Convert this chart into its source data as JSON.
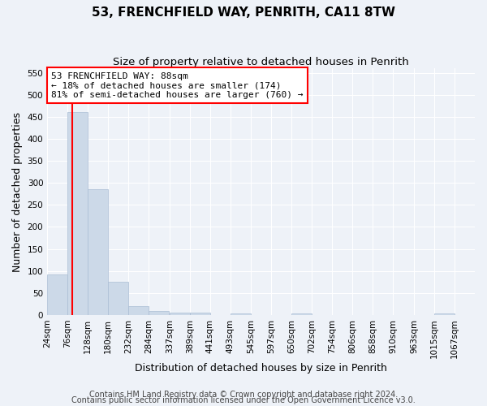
{
  "title": "53, FRENCHFIELD WAY, PENRITH, CA11 8TW",
  "subtitle": "Size of property relative to detached houses in Penrith",
  "xlabel": "Distribution of detached houses by size in Penrith",
  "ylabel": "Number of detached properties",
  "footnote1": "Contains HM Land Registry data © Crown copyright and database right 2024.",
  "footnote2": "Contains public sector information licensed under the Open Government Licence v3.0.",
  "bar_color": "#ccd9e8",
  "bar_edge_color": "#aabdd4",
  "property_line_color": "red",
  "property_sqm": 88,
  "annotation_line1": "53 FRENCHFIELD WAY: 88sqm",
  "annotation_line2": "← 18% of detached houses are smaller (174)",
  "annotation_line3": "81% of semi-detached houses are larger (760) →",
  "annotation_box_color": "white",
  "annotation_box_edge_color": "red",
  "categories": [
    "24sqm",
    "76sqm",
    "128sqm",
    "180sqm",
    "232sqm",
    "284sqm",
    "337sqm",
    "389sqm",
    "441sqm",
    "493sqm",
    "545sqm",
    "597sqm",
    "650sqm",
    "702sqm",
    "754sqm",
    "806sqm",
    "858sqm",
    "910sqm",
    "963sqm",
    "1015sqm",
    "1067sqm"
  ],
  "bin_edges": [
    24,
    76,
    128,
    180,
    232,
    284,
    337,
    389,
    441,
    493,
    545,
    597,
    650,
    702,
    754,
    806,
    858,
    910,
    963,
    1015,
    1067
  ],
  "bin_width": 52,
  "values": [
    93,
    460,
    286,
    76,
    21,
    9,
    6,
    5,
    0,
    4,
    0,
    0,
    4,
    0,
    0,
    0,
    0,
    0,
    0,
    4,
    0
  ],
  "ylim": [
    0,
    560
  ],
  "yticks": [
    0,
    50,
    100,
    150,
    200,
    250,
    300,
    350,
    400,
    450,
    500,
    550
  ],
  "background_color": "#eef2f8",
  "title_fontsize": 11,
  "subtitle_fontsize": 9.5,
  "axis_label_fontsize": 9,
  "tick_fontsize": 7.5,
  "annotation_fontsize": 8,
  "footnote_fontsize": 7
}
